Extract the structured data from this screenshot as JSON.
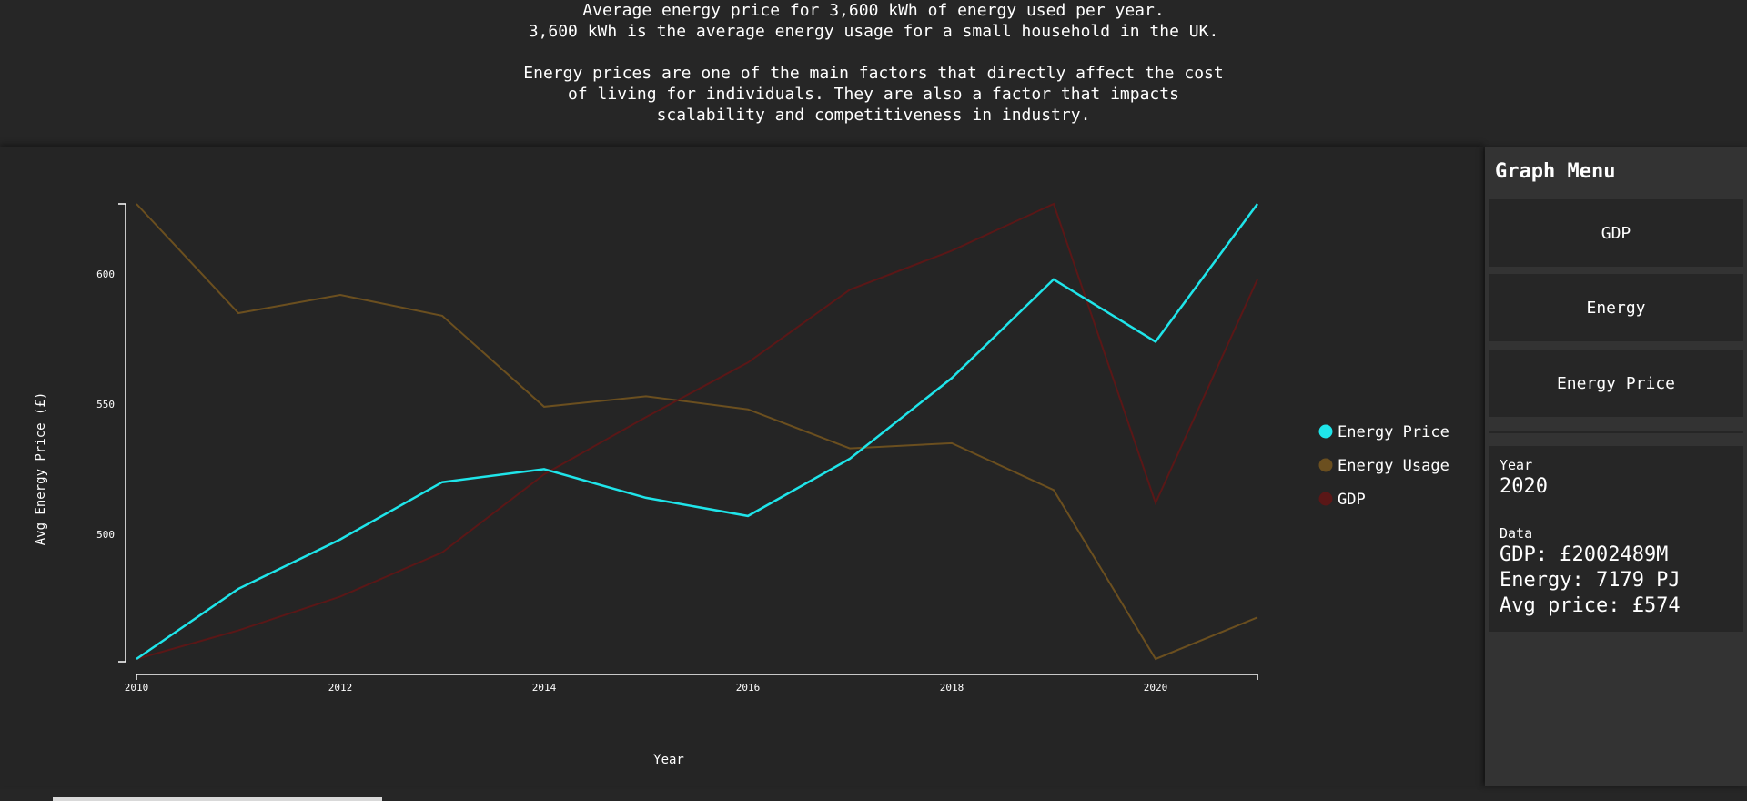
{
  "header": {
    "lines": [
      "Average energy price for 3,600 kWh of energy used per year.",
      "3,600 kWh is the average energy usage for a small household in the UK.",
      "",
      "Energy prices are one of the main factors that directly affect the cost",
      "of living for individuals. They are also a factor that impacts",
      "scalability and competitiveness in industry."
    ]
  },
  "menu": {
    "title": "Graph Menu",
    "buttons": [
      "GDP",
      "Energy",
      "Energy Price"
    ]
  },
  "info": {
    "year_label": "Year",
    "year_value": "2020",
    "data_label": "Data",
    "gdp": "GDP: £2002489M",
    "energy": "Energy: 7179 PJ",
    "avg_price": "Avg price: £574"
  },
  "chart_data": {
    "type": "line",
    "xlabel": "Year",
    "ylabel": "Avg Energy Price (£)",
    "x": [
      2010,
      2011,
      2012,
      2013,
      2014,
      2015,
      2016,
      2017,
      2018,
      2019,
      2020,
      2021
    ],
    "x_ticks": [
      "2010",
      "2012",
      "2014",
      "2016",
      "2018",
      "2020"
    ],
    "y_ticks": [
      "500",
      "550",
      "600"
    ],
    "ylim": [
      452,
      627
    ],
    "legend_position": "right",
    "series": [
      {
        "name": "Energy Price",
        "color": "#1fe5ea",
        "values": [
          452,
          479,
          498,
          520,
          525,
          514,
          507,
          529,
          560,
          598,
          574,
          627
        ]
      },
      {
        "name": "Energy Usage",
        "color": "#6b4f1f",
        "values": [
          627,
          585,
          592,
          584,
          549,
          553,
          548,
          533,
          535,
          517,
          452,
          468
        ]
      },
      {
        "name": "GDP",
        "color": "#5a1717",
        "values": [
          452,
          463,
          476,
          493,
          523,
          545,
          566,
          594,
          609,
          627,
          512,
          598
        ]
      }
    ]
  }
}
